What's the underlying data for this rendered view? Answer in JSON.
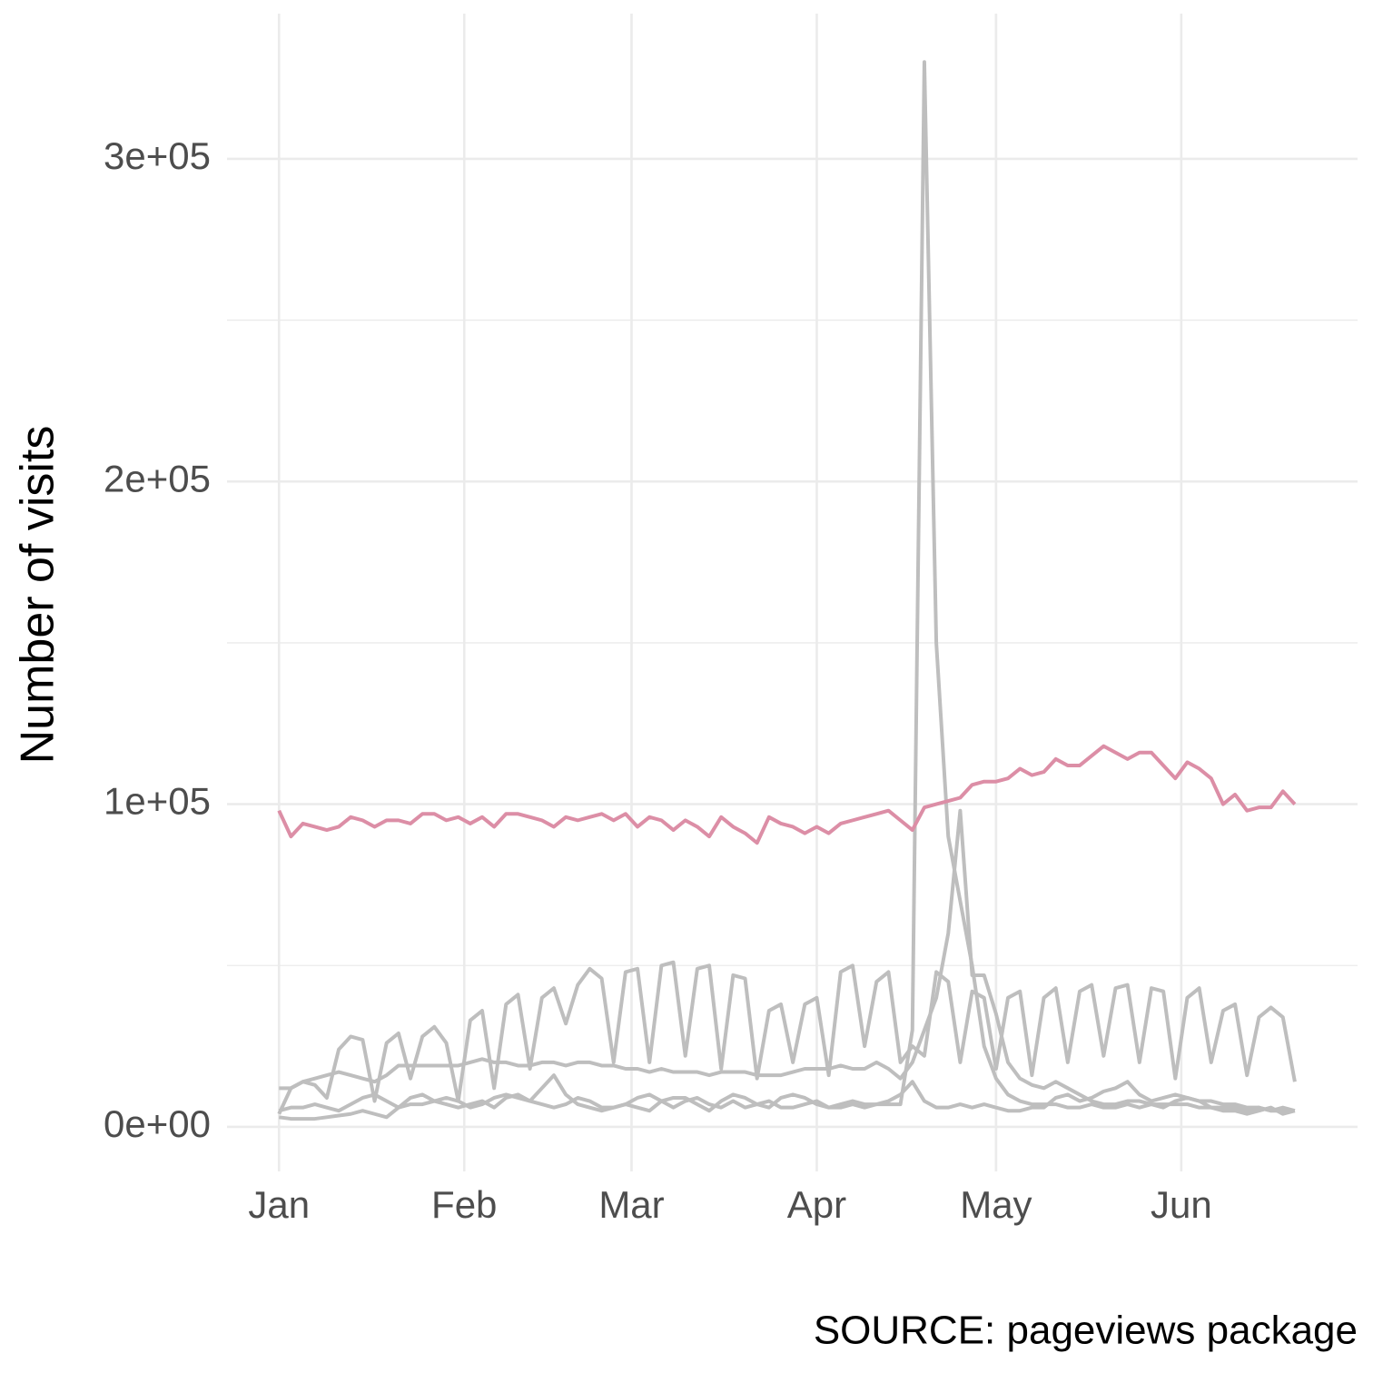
{
  "chart_data": {
    "type": "line",
    "y_label": "Number of visits",
    "caption": "SOURCE: pageviews package",
    "x": [
      0,
      2,
      4,
      6,
      8,
      10,
      12,
      14,
      16,
      18,
      20,
      22,
      24,
      26,
      28,
      30,
      32,
      34,
      36,
      38,
      40,
      42,
      44,
      46,
      48,
      50,
      52,
      54,
      56,
      58,
      60,
      62,
      64,
      66,
      68,
      70,
      72,
      74,
      76,
      78,
      80,
      82,
      84,
      86,
      88,
      90,
      92,
      94,
      96,
      98,
      100,
      102,
      104,
      106,
      108,
      110,
      112,
      114,
      116,
      118,
      120,
      122,
      124,
      126,
      128,
      130,
      132,
      134,
      136,
      138,
      140,
      142,
      144,
      146,
      148,
      150,
      152,
      154,
      156,
      158,
      160,
      162,
      164,
      166,
      168,
      170
    ],
    "xlim": [
      -8.7,
      180.5
    ],
    "xticks": [
      {
        "value": 0,
        "label": "Jan"
      },
      {
        "value": 31,
        "label": "Feb"
      },
      {
        "value": 59,
        "label": "Mar"
      },
      {
        "value": 90,
        "label": "Apr"
      },
      {
        "value": 120,
        "label": "May"
      },
      {
        "value": 151,
        "label": "Jun"
      }
    ],
    "ylim": [
      -13800,
      345000
    ],
    "yticks": [
      {
        "value": 0,
        "label": "0e+00"
      },
      {
        "value": 100000,
        "label": "1e+05"
      },
      {
        "value": 200000,
        "label": "2e+05"
      },
      {
        "value": 300000,
        "label": "3e+05"
      }
    ],
    "yminor": [
      50000,
      150000,
      250000
    ],
    "grid": true,
    "series": [
      {
        "color": "#bebebe",
        "values": [
          4000,
          12000,
          14000,
          13000,
          9000,
          24000,
          28000,
          27000,
          8000,
          26000,
          29000,
          15000,
          28000,
          31000,
          26000,
          8000,
          33000,
          36000,
          12000,
          38000,
          41000,
          18000,
          40000,
          43000,
          32000,
          44000,
          49000,
          46000,
          20000,
          48000,
          49000,
          20000,
          50000,
          51000,
          22000,
          49000,
          50000,
          18000,
          47000,
          46000,
          15000,
          36000,
          38000,
          20000,
          38000,
          40000,
          16000,
          48000,
          50000,
          25000,
          45000,
          48000,
          20000,
          25000,
          22000,
          48000,
          45000,
          20000,
          42000,
          40000,
          18000,
          40000,
          42000,
          16000,
          40000,
          43000,
          20000,
          42000,
          44000,
          22000,
          43000,
          44000,
          20000,
          43000,
          42000,
          15000,
          40000,
          43000,
          20000,
          36000,
          38000,
          16000,
          34000,
          37000,
          34000,
          14000
        ]
      },
      {
        "color": "#bebebe",
        "values": [
          5000,
          6000,
          6000,
          7000,
          6000,
          5000,
          7000,
          9000,
          10000,
          8000,
          6000,
          9000,
          10000,
          8000,
          7000,
          6000,
          7000,
          8000,
          6000,
          9000,
          10000,
          8000,
          7000,
          6000,
          7000,
          9000,
          8000,
          6000,
          6000,
          7000,
          9000,
          10000,
          8000,
          6000,
          8000,
          9000,
          7000,
          6000,
          8000,
          6000,
          7000,
          8000,
          6000,
          6000,
          7000,
          8000,
          6000,
          7000,
          8000,
          7000,
          7000,
          7000,
          7000,
          30000,
          330000,
          150000,
          90000,
          70000,
          50000,
          25000,
          15000,
          10000,
          8000,
          7000,
          7000,
          7000,
          6000,
          6000,
          7000,
          6000,
          6000,
          7000,
          6000,
          7000,
          6000,
          8000,
          9000,
          8000,
          8000,
          7000,
          7000,
          6000,
          6000,
          5000,
          6000,
          5000
        ]
      },
      {
        "color": "#bebebe",
        "values": [
          12000,
          12000,
          14000,
          15000,
          16000,
          17000,
          16000,
          15000,
          14000,
          16000,
          19000,
          19000,
          19000,
          19000,
          19000,
          19000,
          20000,
          21000,
          20000,
          20000,
          19000,
          19000,
          20000,
          20000,
          19000,
          20000,
          20000,
          19000,
          19000,
          18000,
          18000,
          17000,
          18000,
          17000,
          17000,
          17000,
          16000,
          17000,
          17000,
          17000,
          16000,
          16000,
          16000,
          17000,
          18000,
          18000,
          18000,
          19000,
          18000,
          18000,
          20000,
          18000,
          15000,
          20000,
          30000,
          40000,
          60000,
          98000,
          47000,
          47000,
          35000,
          20000,
          15000,
          13000,
          12000,
          14000,
          12000,
          10000,
          8000,
          7000,
          7000,
          8000,
          8000,
          7000,
          7000,
          7000,
          7000,
          6000,
          6000,
          6000,
          6000,
          5000,
          6000,
          5000,
          5000,
          5000
        ]
      },
      {
        "color": "#bebebe",
        "values": [
          3000,
          2500,
          2500,
          2500,
          3000,
          3500,
          4000,
          5000,
          4000,
          3000,
          6000,
          7000,
          7000,
          8000,
          9000,
          8000,
          6000,
          7000,
          9000,
          10000,
          9000,
          8000,
          12000,
          16000,
          10000,
          7000,
          6000,
          5000,
          6000,
          7000,
          6000,
          5000,
          8000,
          9000,
          9000,
          7000,
          5000,
          8000,
          10000,
          9000,
          7000,
          6000,
          9000,
          10000,
          9000,
          7000,
          6000,
          6000,
          7000,
          6000,
          7000,
          8000,
          10000,
          14000,
          8000,
          6000,
          6000,
          7000,
          6000,
          7000,
          6000,
          5000,
          5000,
          6000,
          6000,
          9000,
          10000,
          8000,
          9000,
          11000,
          12000,
          14000,
          10000,
          8000,
          9000,
          10000,
          9000,
          8000,
          6000,
          5000,
          5000,
          4000,
          5000,
          6000,
          4000,
          5000
        ]
      },
      {
        "color": "#dc8ea6",
        "values": [
          98000,
          90000,
          94000,
          93000,
          92000,
          93000,
          96000,
          95000,
          93000,
          95000,
          95000,
          94000,
          97000,
          97000,
          95000,
          96000,
          94000,
          96000,
          93000,
          97000,
          97000,
          96000,
          95000,
          93000,
          96000,
          95000,
          96000,
          97000,
          95000,
          97000,
          93000,
          96000,
          95000,
          92000,
          95000,
          93000,
          90000,
          96000,
          93000,
          91000,
          88000,
          96000,
          94000,
          93000,
          91000,
          93000,
          91000,
          94000,
          95000,
          96000,
          97000,
          98000,
          95000,
          92000,
          99000,
          100000,
          101000,
          102000,
          106000,
          107000,
          107000,
          108000,
          111000,
          109000,
          110000,
          114000,
          112000,
          112000,
          115000,
          118000,
          116000,
          114000,
          116000,
          116000,
          112000,
          108000,
          113000,
          111000,
          108000,
          100000,
          103000,
          98000,
          99000,
          99000,
          104000,
          100000
        ]
      }
    ]
  }
}
